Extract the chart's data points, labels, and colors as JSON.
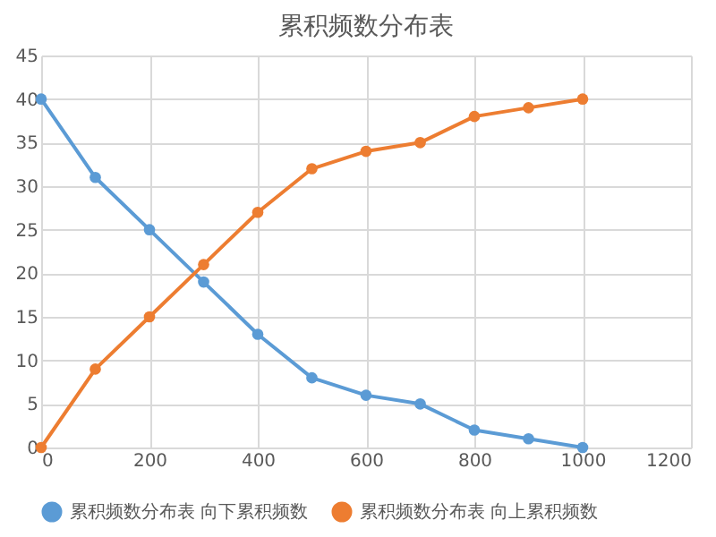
{
  "chart_data": {
    "type": "line",
    "title": "累积频数分布表",
    "x": [
      0,
      100,
      200,
      300,
      400,
      500,
      600,
      700,
      800,
      900,
      1000
    ],
    "series": [
      {
        "name": "累积频数分布表 向下累积频数",
        "color": "#5b9bd5",
        "values": [
          40,
          31,
          25,
          19,
          13,
          8,
          6,
          5,
          2,
          1,
          0
        ]
      },
      {
        "name": "累积频数分布表 向上累积频数",
        "color": "#ed7d31",
        "values": [
          0,
          9,
          15,
          21,
          27,
          32,
          34,
          35,
          38,
          39,
          40
        ]
      }
    ],
    "xlim": [
      0,
      1200
    ],
    "xticks": [
      0,
      200,
      400,
      600,
      800,
      1000,
      1200
    ],
    "ylim": [
      0,
      45
    ],
    "yticks": [
      0,
      5,
      10,
      15,
      20,
      25,
      30,
      35,
      40,
      45
    ],
    "grid": true,
    "legend": "bottom",
    "marker": "circle",
    "line_style": "solid"
  }
}
